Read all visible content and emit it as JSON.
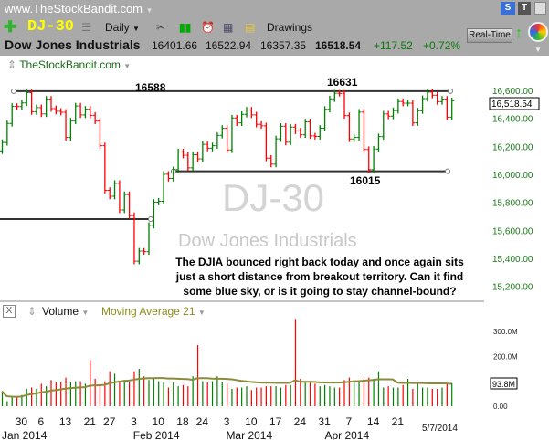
{
  "header": {
    "site": "www.TheStockBandit.com",
    "s_button": "S",
    "t_button": "T"
  },
  "toolbar": {
    "symbol": "DJ-30",
    "period": "Daily",
    "drawings": "Drawings",
    "realtime": "Real-Time"
  },
  "quote": {
    "name": "Dow Jones Industrials",
    "open": "16401.66",
    "high": "16522.94",
    "low": "16357.35",
    "last": "16518.54",
    "change": "+117.52",
    "pct": "+0.72%"
  },
  "chart": {
    "source": "TheStockBandit.com",
    "watermark_symbol": "DJ-30",
    "watermark_name": "Dow Jones Industrials",
    "note_lines": [
      "The DJIA bounced right back today and once again sits",
      "just a short distance from breakout territory.  Can it find",
      "some blue sky, or is it going to stay channel-bound?"
    ],
    "annotations": [
      {
        "label": "16588",
        "price": 16588
      },
      {
        "label": "16631",
        "price": 16631
      },
      {
        "label": "16015",
        "price": 16015
      }
    ],
    "last_price_label": "16,518.54"
  },
  "chart_data": {
    "type": "ohlc-bar",
    "price_ticks": [
      "16,600.00",
      "16,400.00",
      "16,200.00",
      "16,000.00",
      "15,800.00",
      "15,600.00",
      "15,400.00",
      "15,200.00"
    ],
    "price_tick_values": [
      16600,
      16400,
      16200,
      16000,
      15800,
      15600,
      15400,
      15200
    ],
    "closes": [
      16221,
      16357,
      16479,
      16478,
      16504,
      16577,
      16441,
      16470,
      16425,
      16531,
      16463,
      16444,
      16437,
      16257,
      16374,
      16482,
      16418,
      16459,
      16415,
      16374,
      16198,
      15879,
      15837,
      15929,
      15739,
      15849,
      15699,
      15373,
      15445,
      15441,
      15629,
      15794,
      15801,
      15994,
      15964,
      16027,
      16154,
      16130,
      16040,
      16133,
      16104,
      16208,
      16180,
      16198,
      16272,
      16322,
      16168,
      16396,
      16361,
      16422,
      16453,
      16418,
      16351,
      16340,
      16109,
      16066,
      16247,
      16337,
      16223,
      16331,
      16303,
      16276,
      16368,
      16268,
      16264,
      16323,
      16458,
      16533,
      16573,
      16572,
      16413,
      16246,
      16257,
      16438,
      16171,
      16027,
      16174,
      16263,
      16425,
      16409,
      16449,
      16514,
      16502,
      16502,
      16361,
      16448,
      16535,
      16581,
      16559,
      16513,
      16531,
      16402,
      16519
    ],
    "volume_m": [
      60,
      20,
      35,
      35,
      45,
      70,
      75,
      70,
      90,
      80,
      105,
      95,
      95,
      115,
      95,
      100,
      100,
      90,
      185,
      110,
      90,
      100,
      140,
      130,
      95,
      105,
      95,
      140,
      150,
      120,
      105,
      110,
      100,
      95,
      75,
      95,
      80,
      85,
      80,
      120,
      245,
      100,
      95,
      100,
      120,
      95,
      90,
      70,
      75,
      75,
      80,
      65,
      75,
      75,
      80,
      80,
      80,
      75,
      85,
      85,
      350,
      110,
      95,
      95,
      90,
      80,
      85,
      80,
      75,
      75,
      105,
      115,
      100,
      95,
      110,
      115,
      110,
      140,
      75,
      80,
      75,
      75,
      85,
      110,
      70,
      95,
      75,
      75,
      70,
      70,
      75,
      92,
      93
    ],
    "volume_ticks": [
      "300.0M",
      "200.0M",
      "0.00"
    ],
    "volume_tick_values": [
      300,
      200,
      0
    ],
    "volume_last_label": "93.8M",
    "volume_title": "Volume",
    "ma_title": "Moving Average 21",
    "ma_period": 21,
    "x_ticks": [
      {
        "label": "30",
        "i": 4
      },
      {
        "label": "6",
        "i": 8
      },
      {
        "label": "13",
        "i": 13
      },
      {
        "label": "21",
        "i": 18
      },
      {
        "label": "27",
        "i": 22
      },
      {
        "label": "3",
        "i": 27
      },
      {
        "label": "10",
        "i": 32
      },
      {
        "label": "18",
        "i": 37
      },
      {
        "label": "24",
        "i": 41
      },
      {
        "label": "3",
        "i": 46
      },
      {
        "label": "10",
        "i": 51
      },
      {
        "label": "17",
        "i": 56
      },
      {
        "label": "24",
        "i": 61
      },
      {
        "label": "31",
        "i": 66
      },
      {
        "label": "7",
        "i": 71
      },
      {
        "label": "14",
        "i": 76
      },
      {
        "label": "21",
        "i": 81
      }
    ],
    "x_months": [
      {
        "label": "Jan 2014",
        "i": 2
      },
      {
        "label": "Feb 2014",
        "i": 29
      },
      {
        "label": "Mar 2014",
        "i": 48
      },
      {
        "label": "Apr 2014",
        "i": 68
      }
    ],
    "last_date": "5/7/2014",
    "colors": {
      "up": "#008000",
      "down": "#ff0000",
      "ma": "#8b8b3a",
      "line": "#333333"
    }
  }
}
